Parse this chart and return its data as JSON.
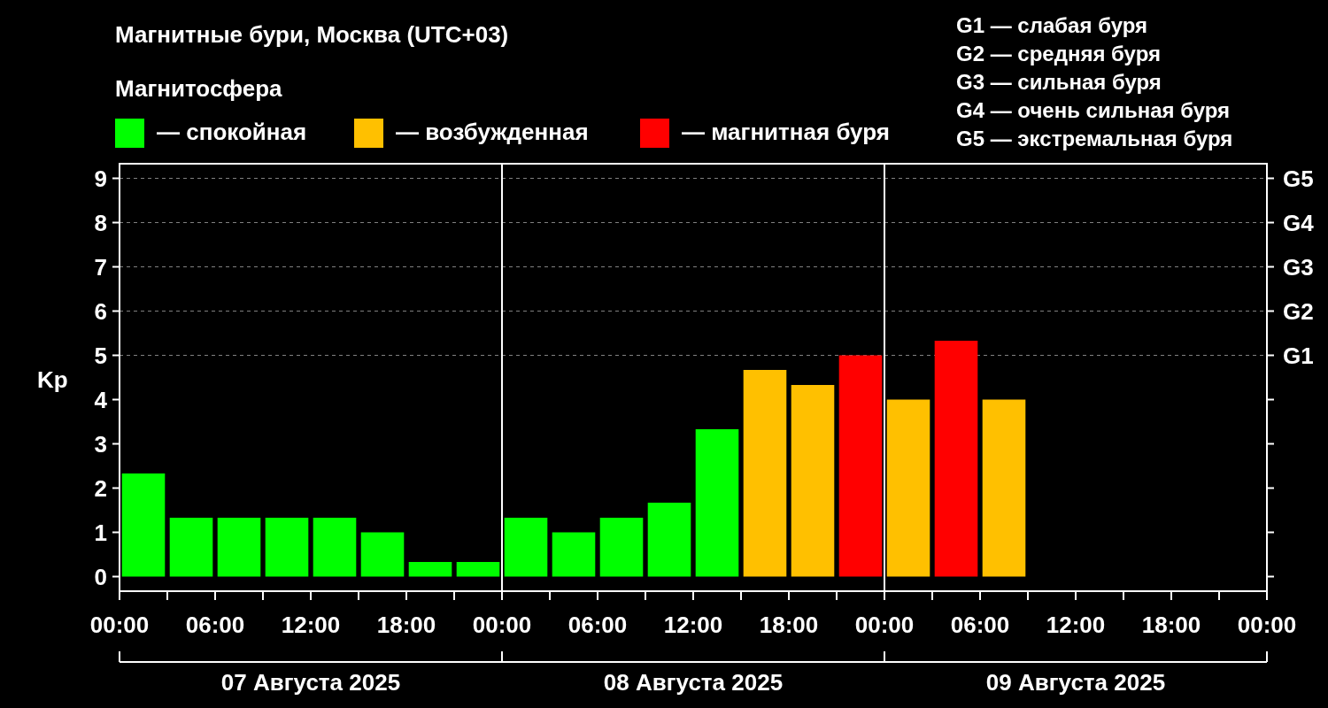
{
  "chart_data": {
    "type": "bar",
    "title": "Магнитные бури, Москва (UTC+03)",
    "ylabel": "Kp",
    "legend_title": "Магнитосфера",
    "legend": "top left",
    "x": [
      "2025-08-07T01:30",
      "2025-08-07T04:30",
      "2025-08-07T07:30",
      "2025-08-07T10:30",
      "2025-08-07T13:30",
      "2025-08-07T16:30",
      "2025-08-07T19:30",
      "2025-08-07T22:30",
      "2025-08-08T01:30",
      "2025-08-08T04:30",
      "2025-08-08T07:30",
      "2025-08-08T10:30",
      "2025-08-08T13:30",
      "2025-08-08T16:30",
      "2025-08-08T19:30",
      "2025-08-08T22:30",
      "2025-08-09T01:30",
      "2025-08-09T04:30",
      "2025-08-09T07:30"
    ],
    "series": [
      {
        "name": "— спокойная",
        "color": "#00ff00",
        "values": [
          2.33,
          1.33,
          1.33,
          1.33,
          1.33,
          1,
          0.33,
          0.33,
          1.33,
          1,
          1.33,
          1.67,
          3.33,
          null,
          null,
          null,
          null,
          null,
          null
        ]
      },
      {
        "name": "— возбужденная",
        "color": "#ffc000",
        "values": [
          null,
          null,
          null,
          null,
          null,
          null,
          null,
          null,
          null,
          null,
          null,
          null,
          null,
          4.67,
          4.33,
          null,
          4,
          null,
          4
        ]
      },
      {
        "name": "— магнитная буря",
        "color": "#ff0000",
        "values": [
          null,
          null,
          null,
          null,
          null,
          null,
          null,
          null,
          null,
          null,
          null,
          null,
          null,
          null,
          null,
          5,
          null,
          5.33,
          null
        ]
      }
    ],
    "xlim": [
      "2025-08-07T00:00",
      "2025-08-10T00:00"
    ],
    "xticks": [
      {
        "value": "2025-08-07T00:00",
        "label": "00:00"
      },
      {
        "value": "2025-08-07T03:00",
        "label": null
      },
      {
        "value": "2025-08-07T06:00",
        "label": "06:00"
      },
      {
        "value": "2025-08-07T09:00",
        "label": null
      },
      {
        "value": "2025-08-07T12:00",
        "label": "12:00"
      },
      {
        "value": "2025-08-07T15:00",
        "label": null
      },
      {
        "value": "2025-08-07T18:00",
        "label": "18:00"
      },
      {
        "value": "2025-08-07T21:00",
        "label": null
      },
      {
        "value": "2025-08-08T00:00",
        "label": "00:00"
      },
      {
        "value": "2025-08-08T03:00",
        "label": null
      },
      {
        "value": "2025-08-08T06:00",
        "label": "06:00"
      },
      {
        "value": "2025-08-08T09:00",
        "label": null
      },
      {
        "value": "2025-08-08T12:00",
        "label": "12:00"
      },
      {
        "value": "2025-08-08T15:00",
        "label": null
      },
      {
        "value": "2025-08-08T18:00",
        "label": "18:00"
      },
      {
        "value": "2025-08-08T21:00",
        "label": null
      },
      {
        "value": "2025-08-09T00:00",
        "label": "00:00"
      },
      {
        "value": "2025-08-09T03:00",
        "label": null
      },
      {
        "value": "2025-08-09T06:00",
        "label": "06:00"
      },
      {
        "value": "2025-08-09T09:00",
        "label": null
      },
      {
        "value": "2025-08-09T12:00",
        "label": "12:00"
      },
      {
        "value": "2025-08-09T15:00",
        "label": null
      },
      {
        "value": "2025-08-09T18:00",
        "label": "18:00"
      },
      {
        "value": "2025-08-09T21:00",
        "label": null
      },
      {
        "value": "2025-08-10T00:00",
        "label": "00:00"
      }
    ],
    "x2lim": [
      "2025-08-07T00:00",
      "2025-08-10T00:00"
    ],
    "x2ticks": [
      {
        "value": "2025-08-07T12:00",
        "label": "07 Августа 2025"
      },
      {
        "value": "2025-08-08T12:00",
        "label": "08 Августа 2025"
      },
      {
        "value": "2025-08-09T12:00",
        "label": "09 Августа 2025"
      }
    ],
    "ylim": [
      -0.33,
      9.33
    ],
    "yticks": [
      0,
      1,
      2,
      3,
      4,
      5,
      6,
      7,
      8,
      9
    ],
    "ref_lines": [
      {
        "axis": "y",
        "value": 5,
        "label": "G1",
        "color": "#808080",
        "line_style": "dashed"
      },
      {
        "axis": "y",
        "value": 6,
        "label": "G2",
        "color": "#808080",
        "line_style": "dashed"
      },
      {
        "axis": "y",
        "value": 7,
        "label": "G3",
        "color": "#808080",
        "line_style": "dashed"
      },
      {
        "axis": "y",
        "value": 8,
        "label": "G4",
        "color": "#808080",
        "line_style": "dashed"
      },
      {
        "axis": "y",
        "value": 9,
        "label": "G5",
        "color": "#808080",
        "line_style": "dashed"
      },
      {
        "axis": "x",
        "value": "2025-08-08T00:00",
        "color": "#ffffff",
        "line_style": "solid"
      },
      {
        "axis": "x",
        "value": "2025-08-09T00:00",
        "color": "#ffffff",
        "line_style": "solid"
      }
    ],
    "annotations": [
      "G1 — слабая буря",
      "G2 — средняя буря",
      "G3 — сильная буря",
      "G4 — очень сильная буря",
      "G5 — экстремальная буря"
    ]
  }
}
